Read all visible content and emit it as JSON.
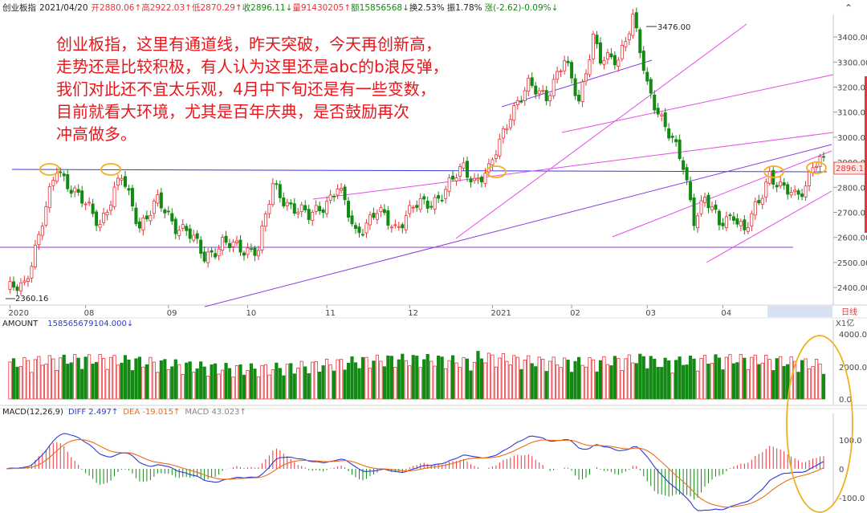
{
  "header": {
    "name": "创业板指",
    "date": "2021/04/20",
    "open": "开2880.06↑",
    "high": "高2922.03↑",
    "low": "低2870.29↑",
    "close": "收2896.11↓",
    "volume": "量91430205↑",
    "amount": "额15856568↓",
    "turnover": "换2.53%",
    "amplitude": "振1.78%",
    "change": "涨(-2.62)-0.09%↓"
  },
  "annotation": {
    "lines": [
      "创业板指，这里有通道线，昨天突破，今天再创新高，",
      "走势还是比较积极，有人认为这里还是abc的b浪反弹，",
      "我们对此还不宜太乐观，4月中下旬还是有一些变数，",
      "目前就看大环境，尤其是百年庆典，是否鼓励再次",
      "冲高做多。"
    ]
  },
  "price_labels": {
    "high_marker": "3476.00",
    "low_marker": "2360.16",
    "current": "2896.11"
  },
  "period": "日线",
  "amount_panel": {
    "title": "AMOUNT",
    "value": "158565679104.000↓",
    "unit": "X1亿"
  },
  "macd_panel": {
    "title": "MACD(12,26,9)",
    "diff": "DIFF 2.497↑",
    "dea": "DEA -19.015↑",
    "macd": "MACD 43.023↑"
  },
  "colors": {
    "up": "#e8333a",
    "down": "#138a13",
    "diff": "#2b3bd6",
    "dea": "#ee6a1a",
    "channel": "#e64de6",
    "channel2": "#8a3be6",
    "neckline": "#3a3ae6",
    "circle": "#f0b020",
    "annotation": "#e8161c"
  },
  "chart_data": {
    "type": "candlestick",
    "x_ticks": [
      "2020",
      "08",
      "09",
      "10",
      "11",
      "12",
      "2021",
      "02",
      "03",
      "04"
    ],
    "price_axis": {
      "ticks": [
        2400,
        2500,
        2600,
        2700,
        2800,
        2900,
        3000,
        3100,
        3200,
        3300,
        3400
      ],
      "range": [
        2330,
        3490
      ]
    },
    "amount_axis": {
      "ticks": [
        "4000.0",
        "2000.0",
        "0.0"
      ]
    },
    "macd_axis": {
      "ticks": [
        "100.0",
        "0",
        "-100.0"
      ]
    },
    "anchors": [
      [
        0,
        2380
      ],
      [
        5,
        2420
      ],
      [
        9,
        2600
      ],
      [
        14,
        2880
      ],
      [
        20,
        2760
      ],
      [
        26,
        2660
      ],
      [
        32,
        2840
      ],
      [
        37,
        2650
      ],
      [
        42,
        2740
      ],
      [
        47,
        2650
      ],
      [
        50,
        2630
      ],
      [
        55,
        2520
      ],
      [
        60,
        2580
      ],
      [
        65,
        2550
      ],
      [
        70,
        2560
      ],
      [
        74,
        2800
      ],
      [
        78,
        2740
      ],
      [
        84,
        2680
      ],
      [
        90,
        2760
      ],
      [
        92,
        2800
      ],
      [
        97,
        2620
      ],
      [
        103,
        2700
      ],
      [
        108,
        2640
      ],
      [
        113,
        2720
      ],
      [
        118,
        2740
      ],
      [
        122,
        2790
      ],
      [
        127,
        2880
      ],
      [
        130,
        2830
      ],
      [
        134,
        2860
      ],
      [
        140,
        3100
      ],
      [
        145,
        3200
      ],
      [
        150,
        3170
      ],
      [
        155,
        3300
      ],
      [
        159,
        3150
      ],
      [
        163,
        3400
      ],
      [
        165,
        3300
      ],
      [
        170,
        3320
      ],
      [
        174,
        3476
      ],
      [
        178,
        3200
      ],
      [
        183,
        3050
      ],
      [
        188,
        2880
      ],
      [
        191,
        2680
      ],
      [
        194,
        2760
      ],
      [
        198,
        2650
      ],
      [
        202,
        2700
      ],
      [
        205,
        2620
      ],
      [
        209,
        2740
      ],
      [
        212,
        2860
      ],
      [
        215,
        2800
      ],
      [
        219,
        2760
      ],
      [
        222,
        2810
      ],
      [
        224,
        2900
      ],
      [
        227,
        2896
      ]
    ],
    "high": 3476.0,
    "low": 2360.16,
    "last_close": 2896.11
  }
}
